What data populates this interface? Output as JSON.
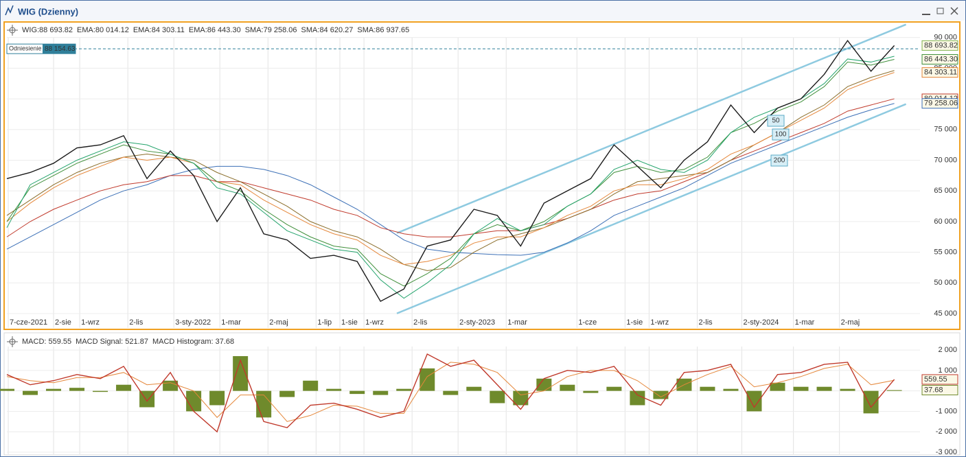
{
  "window": {
    "title": "WIG (Dzienny)"
  },
  "chart_data": [
    {
      "type": "line",
      "x": [
        0,
        1,
        2,
        3,
        4,
        5,
        6,
        7,
        8,
        9,
        10,
        11,
        12,
        13,
        14,
        15,
        16,
        17,
        18,
        19,
        20,
        21,
        22,
        23,
        24,
        25,
        26,
        27,
        28,
        29,
        30,
        31,
        32,
        33,
        34,
        35,
        36,
        37,
        38
      ],
      "xlim": [
        0,
        39.1
      ],
      "xticks": [
        {
          "value": 0.06,
          "label": "7-cze-2021"
        },
        {
          "value": 2,
          "label": "2-sie"
        },
        {
          "value": 3.12,
          "label": "1-wrz"
        },
        {
          "value": 5.18,
          "label": "2-lis"
        },
        {
          "value": 7.15,
          "label": "3-sty-2022"
        },
        {
          "value": 9.12,
          "label": "1-mar"
        },
        {
          "value": 11.18,
          "label": "2-maj"
        },
        {
          "value": 13.24,
          "label": "1-lip"
        },
        {
          "value": 14.26,
          "label": "1-sie"
        },
        {
          "value": 15.29,
          "label": "1-wrz"
        },
        {
          "value": 17.35,
          "label": "2-lis"
        },
        {
          "value": 19.32,
          "label": "2-sty-2023"
        },
        {
          "value": 21.38,
          "label": "1-mar"
        },
        {
          "value": 24.41,
          "label": "1-cze"
        },
        {
          "value": 26.47,
          "label": "1-sie"
        },
        {
          "value": 27.5,
          "label": "1-wrz"
        },
        {
          "value": 29.56,
          "label": "2-lis"
        },
        {
          "value": 31.47,
          "label": "2-sty-2024"
        },
        {
          "value": 33.68,
          "label": "1-mar"
        },
        {
          "value": 35.65,
          "label": "2-maj"
        }
      ],
      "ylim": [
        42650,
        92200
      ],
      "yticks": [
        {
          "value": 45000,
          "label": "45 000"
        },
        {
          "value": 50000,
          "label": "50 000"
        },
        {
          "value": 55000,
          "label": "55 000"
        },
        {
          "value": 60000,
          "label": "60 000"
        },
        {
          "value": 65000,
          "label": "65 000"
        },
        {
          "value": 70000,
          "label": "70 000"
        },
        {
          "value": 75000,
          "label": "75 000"
        },
        {
          "value": 80000,
          "label": "80 000"
        },
        {
          "value": 85000,
          "label": "85 000"
        },
        {
          "value": 90000,
          "label": "90 000"
        }
      ],
      "grid": true,
      "series": [
        {
          "name": "WIG:88 693.82",
          "color": "#1a1a1a",
          "last_label": "88 693.82",
          "tag": "#7fb24a",
          "values": [
            67000,
            68000,
            69500,
            72000,
            72500,
            74000,
            67000,
            71500,
            67500,
            60000,
            65500,
            58000,
            57000,
            54000,
            54500,
            53500,
            47000,
            49000,
            56000,
            57000,
            62000,
            61000,
            56000,
            63000,
            65000,
            67000,
            72500,
            69000,
            65500,
            70000,
            73000,
            79000,
            74500,
            78500,
            80000,
            84000,
            89500,
            84500,
            88693.82
          ]
        },
        {
          "name": "EMA:80 014.12",
          "color": "#c0392b",
          "last_label": "80 014.12",
          "tag": "#c0392b",
          "values": [
            57500,
            60000,
            62000,
            63500,
            65000,
            66000,
            66500,
            67500,
            67500,
            66500,
            66500,
            65500,
            64500,
            63500,
            62000,
            61000,
            59000,
            58000,
            57500,
            57500,
            58000,
            58500,
            58500,
            59500,
            60500,
            62000,
            63500,
            64500,
            65000,
            66500,
            68000,
            70000,
            71500,
            73000,
            74500,
            76000,
            78000,
            79000,
            80014.12
          ]
        },
        {
          "name": "EMA:84 303.11",
          "color": "#e5873a",
          "last_label": "84 303.11",
          "tag": "#e5873a",
          "values": [
            60000,
            63000,
            65500,
            67500,
            69000,
            70500,
            70000,
            70500,
            69500,
            66500,
            66000,
            63500,
            61500,
            59500,
            58000,
            57000,
            54500,
            53000,
            53500,
            54500,
            56500,
            57500,
            57500,
            59000,
            61000,
            62500,
            65000,
            66000,
            66000,
            67000,
            68500,
            71000,
            72500,
            74500,
            76500,
            78500,
            81500,
            83000,
            84303.11
          ]
        },
        {
          "name": "EMA:86 443.30",
          "color": "#3f8f3a",
          "last_label": "86 443.30",
          "tag": "#3f8f3a",
          "values": [
            60000,
            65500,
            67500,
            69500,
            71000,
            72500,
            71500,
            71000,
            69500,
            66500,
            65000,
            62000,
            59500,
            57500,
            56000,
            55500,
            51500,
            49500,
            51500,
            54000,
            58000,
            59500,
            58500,
            60000,
            62500,
            64500,
            68000,
            69000,
            68000,
            68500,
            70500,
            74500,
            76000,
            78000,
            79500,
            82000,
            86000,
            85500,
            86443.3
          ]
        },
        {
          "name": "SMA:79 258.06",
          "color": "#3b6fb6",
          "last_label": "79 258.06",
          "tag": "#3b6fb6",
          "values": [
            55500,
            57500,
            59500,
            61500,
            63500,
            65000,
            66000,
            67500,
            68500,
            69000,
            69000,
            68500,
            67500,
            66000,
            64000,
            62000,
            59500,
            57000,
            55500,
            55000,
            54800,
            54600,
            54500,
            55000,
            56500,
            58500,
            61000,
            62500,
            64000,
            65500,
            67500,
            69500,
            71000,
            72500,
            74000,
            75500,
            77000,
            78200,
            79258.06
          ]
        },
        {
          "name": "SMA:84 620.27",
          "color": "#8a6d2a",
          "values": [
            61000,
            63500,
            66000,
            68000,
            69500,
            70500,
            71000,
            70500,
            70000,
            68000,
            66500,
            64500,
            62500,
            60000,
            58500,
            57500,
            55500,
            53000,
            52000,
            52500,
            55000,
            57000,
            58000,
            59000,
            60500,
            62000,
            64500,
            66500,
            67000,
            67500,
            68000,
            70000,
            72500,
            74500,
            77000,
            79000,
            82000,
            83500,
            84620.27
          ]
        },
        {
          "name": "SMA:86 937.65",
          "color": "#22a36b",
          "values": [
            59000,
            66000,
            68000,
            70000,
            71500,
            73000,
            72500,
            71000,
            69500,
            65500,
            64500,
            61500,
            58500,
            57000,
            55500,
            55000,
            50500,
            47500,
            50000,
            53000,
            58000,
            60500,
            58500,
            59500,
            62500,
            64500,
            68500,
            70000,
            68500,
            68000,
            70000,
            74500,
            77000,
            78500,
            80000,
            82500,
            86500,
            86000,
            86937.65
          ]
        }
      ],
      "reference": {
        "label": "Odniesienie",
        "value_label": "88 154.63",
        "value": 88154.63,
        "color": "#2f7f9a"
      },
      "channel": {
        "color": "#8ecae0",
        "lines": [
          {
            "x": [
              16.7,
              38.5
            ],
            "y": [
              58120,
              92125
            ]
          },
          {
            "x": [
              16.7,
              38.5
            ],
            "y": [
              45030,
              79150
            ]
          }
        ]
      },
      "badges": [
        "50",
        "100",
        "200"
      ]
    },
    {
      "type": "macd",
      "ylim": [
        -3100,
        2170
      ],
      "yticks": [
        {
          "value": 2000,
          "label": "2 000"
        },
        {
          "value": 1000,
          "label": "1 000"
        },
        0,
        {
          "value": -1000,
          "label": "-1 000"
        },
        {
          "value": -2000,
          "label": "-2 000"
        },
        {
          "value": -3000,
          "label": "-3 000"
        }
      ],
      "series": [
        {
          "name": "MACD: 559.55",
          "color": "#c0392b",
          "last_label": "559.55",
          "tag": "#c0392b",
          "values": [
            800,
            300,
            500,
            800,
            600,
            1200,
            -500,
            900,
            -1000,
            -2000,
            1500,
            -1500,
            -1800,
            -700,
            -600,
            -900,
            -1300,
            -1000,
            1800,
            1200,
            1500,
            300,
            -900,
            600,
            1000,
            900,
            1200,
            -200,
            -700,
            900,
            1000,
            1300,
            -800,
            800,
            900,
            1300,
            1400,
            -800,
            559.55
          ]
        },
        {
          "name": "MACD Signal: 521.87",
          "color": "#e5873a",
          "values": [
            700,
            500,
            400,
            650,
            650,
            900,
            300,
            400,
            0,
            -1300,
            -200,
            -200,
            -1500,
            -1200,
            -700,
            -750,
            -1100,
            -1100,
            700,
            1400,
            1300,
            900,
            -200,
            0,
            700,
            1000,
            1000,
            500,
            -300,
            300,
            800,
            1200,
            200,
            400,
            700,
            1100,
            1300,
            300,
            521.87
          ]
        },
        {
          "name": "MACD Histogram: 37.68",
          "color": "#6f8a2c",
          "last_label": "37.68",
          "tag": "#6f8a2c",
          "bars": true,
          "values": [
            100,
            -200,
            100,
            150,
            -50,
            300,
            -800,
            500,
            -1000,
            -700,
            1700,
            -1300,
            -300,
            500,
            100,
            -150,
            -200,
            100,
            1100,
            -200,
            200,
            -600,
            -700,
            600,
            300,
            -100,
            200,
            -700,
            -400,
            600,
            200,
            100,
            -1000,
            400,
            200,
            200,
            100,
            -1100,
            37.68
          ]
        }
      ]
    }
  ]
}
